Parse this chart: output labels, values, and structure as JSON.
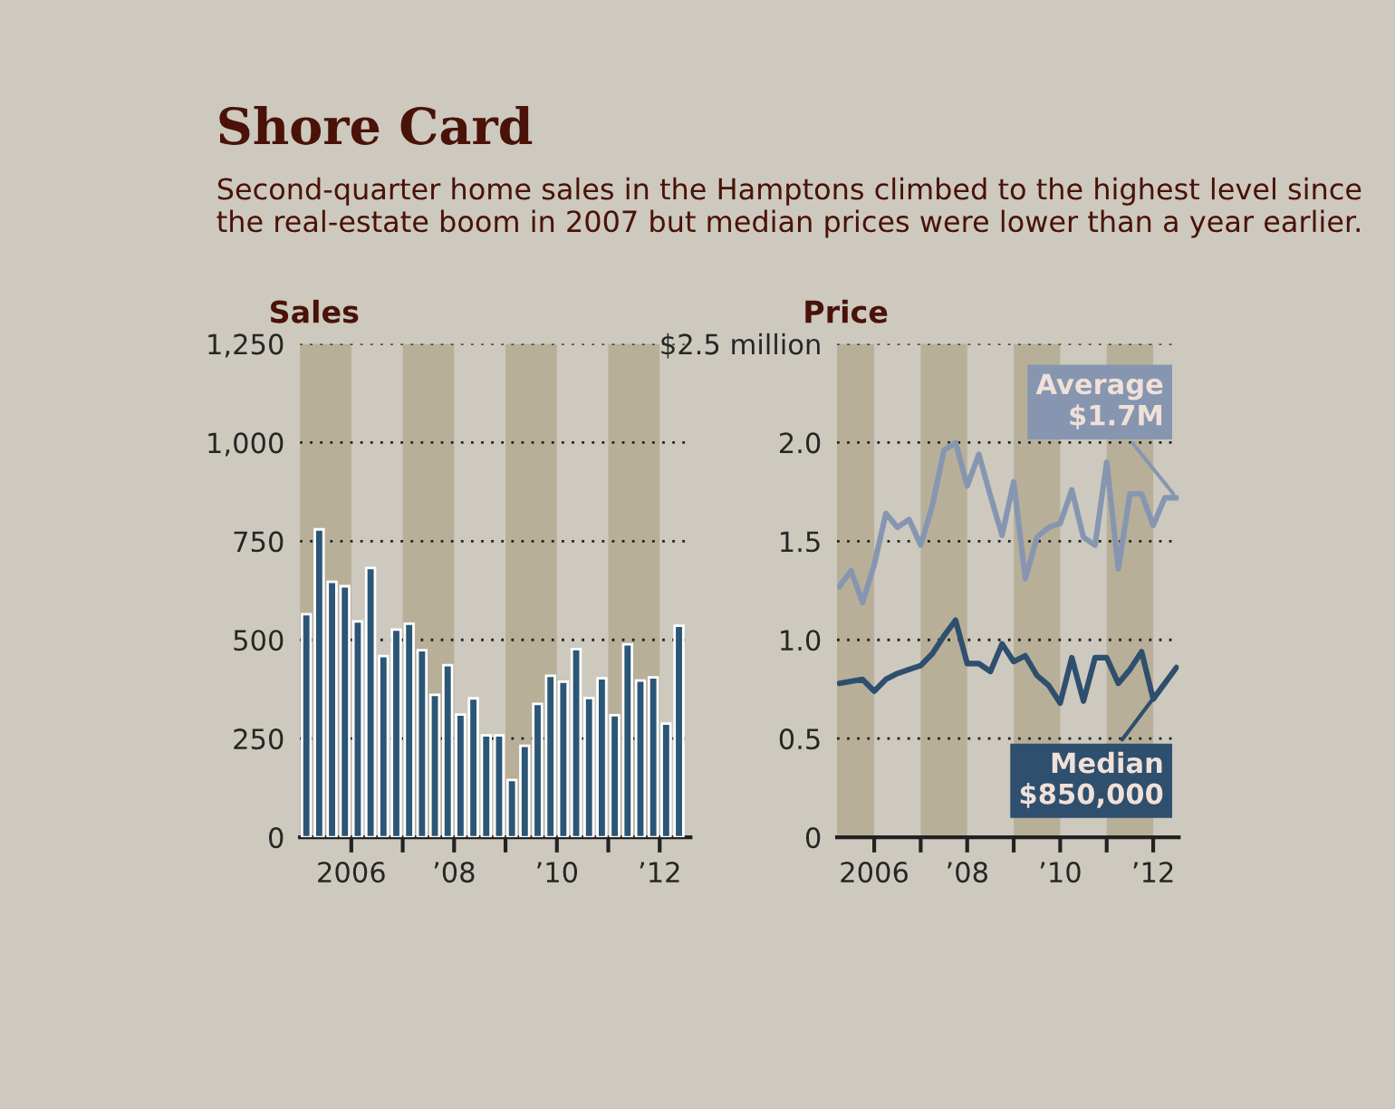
{
  "chart_data": [
    {
      "type": "bar",
      "title": "Shore Card",
      "subtitle": "Second-quarter home sales in the Hamptons climbed to the highest level since the real-estate boom in 2007 but median prices were lower than a year earlier.",
      "ylabel": "Sales",
      "x": [
        2005.125,
        2005.375,
        2005.625,
        2005.875,
        2006.125,
        2006.375,
        2006.625,
        2006.875,
        2007.125,
        2007.375,
        2007.625,
        2007.875,
        2008.125,
        2008.375,
        2008.625,
        2008.875,
        2009.125,
        2009.375,
        2009.625,
        2009.875,
        2010.125,
        2010.375,
        2010.625,
        2010.875,
        2011.125,
        2011.375,
        2011.625,
        2011.875,
        2012.125,
        2012.375
      ],
      "series": [
        {
          "color": "#2b5676",
          "values": [
            565,
            780,
            647,
            636,
            547,
            682,
            459,
            526,
            541,
            474,
            361,
            436,
            311,
            352,
            258,
            258,
            145,
            232,
            338,
            409,
            394,
            477,
            353,
            403,
            309,
            489,
            397,
            405,
            288,
            536
          ]
        }
      ],
      "xlim": [
        2005,
        2012.6
      ],
      "xticks": [
        2006,
        {
          "value": 2007,
          "label": null
        },
        {
          "value": 2008,
          "label": "’08"
        },
        {
          "value": 2009,
          "label": null
        },
        {
          "value": 2010,
          "label": "’10"
        },
        {
          "value": 2011,
          "label": null
        },
        {
          "value": 2012,
          "label": "’12"
        }
      ],
      "ylim": [
        0,
        1250
      ],
      "yticks": [
        0,
        250,
        500,
        750,
        {
          "value": 1000,
          "label": "1,000"
        },
        {
          "value": 1250,
          "label": "1,250"
        }
      ],
      "bands": [
        {
          "axis": "x",
          "from": 2005,
          "to": 2006,
          "color": "#b8af99"
        },
        {
          "axis": "x",
          "from": 2007,
          "to": 2008,
          "color": "#b8af99"
        },
        {
          "axis": "x",
          "from": 2009,
          "to": 2010,
          "color": "#b8af99"
        },
        {
          "axis": "x",
          "from": 2011,
          "to": 2012,
          "color": "#b8af99"
        }
      ],
      "grid": "y",
      "legend": false
    },
    {
      "type": "line",
      "ylabel": "Price",
      "x": [
        2005.25,
        2005.5,
        2005.75,
        2006.0,
        2006.25,
        2006.5,
        2006.75,
        2007.0,
        2007.25,
        2007.5,
        2007.75,
        2008.0,
        2008.25,
        2008.5,
        2008.75,
        2009.0,
        2009.25,
        2009.5,
        2009.75,
        2010.0,
        2010.25,
        2010.5,
        2010.75,
        2011.0,
        2011.25,
        2011.5,
        2011.75,
        2012.0,
        2012.25,
        2012.5
      ],
      "series": [
        {
          "color": "#8796b0",
          "values": [
            1.27,
            1.35,
            1.19,
            1.38,
            1.64,
            1.57,
            1.61,
            1.48,
            1.68,
            1.96,
            2.0,
            1.78,
            1.94,
            1.73,
            1.53,
            1.8,
            1.31,
            1.52,
            1.57,
            1.59,
            1.76,
            1.52,
            1.48,
            1.9,
            1.36,
            1.74,
            1.74,
            1.58,
            1.72,
            1.72
          ]
        },
        {
          "color": "#2f4f6e",
          "values": [
            0.78,
            0.79,
            0.8,
            0.74,
            0.8,
            0.83,
            0.85,
            0.87,
            0.93,
            1.02,
            1.1,
            0.88,
            0.88,
            0.84,
            0.98,
            0.89,
            0.92,
            0.82,
            0.77,
            0.68,
            0.91,
            0.69,
            0.91,
            0.91,
            0.78,
            0.85,
            0.94,
            0.7,
            0.78,
            0.86
          ]
        }
      ],
      "annotations": [
        {
          "text": "Average\n$1.7M",
          "x": 2012.5,
          "y": 1.72
        },
        {
          "text": "Median\n$850,000",
          "x": 2012.5,
          "y": 0.86
        }
      ],
      "xlim": [
        2005.2,
        2012.55
      ],
      "xticks": [
        2006,
        {
          "value": 2007,
          "label": null
        },
        {
          "value": 2008,
          "label": "’08"
        },
        {
          "value": 2009,
          "label": null
        },
        {
          "value": 2010,
          "label": "’10"
        },
        {
          "value": 2011,
          "label": null
        },
        {
          "value": 2012,
          "label": "’12"
        }
      ],
      "ylim": [
        0,
        2.5
      ],
      "yticks": [
        0,
        0.5,
        {
          "value": 1,
          "label": "1.0"
        },
        1.5,
        {
          "value": 2,
          "label": "2.0"
        },
        {
          "value": 2.5,
          "label": "$2.5 million"
        }
      ],
      "bands": [
        {
          "axis": "x",
          "from": 2005.2,
          "to": 2006,
          "color": "#b8af99"
        },
        {
          "axis": "x",
          "from": 2007,
          "to": 2008,
          "color": "#b8af99"
        },
        {
          "axis": "x",
          "from": 2009,
          "to": 2010,
          "color": "#b8af99"
        },
        {
          "axis": "x",
          "from": 2011,
          "to": 2012,
          "color": "#b8af99"
        }
      ],
      "grid": "y",
      "legend": false,
      "marker": "none",
      "line_style": "solid"
    }
  ]
}
